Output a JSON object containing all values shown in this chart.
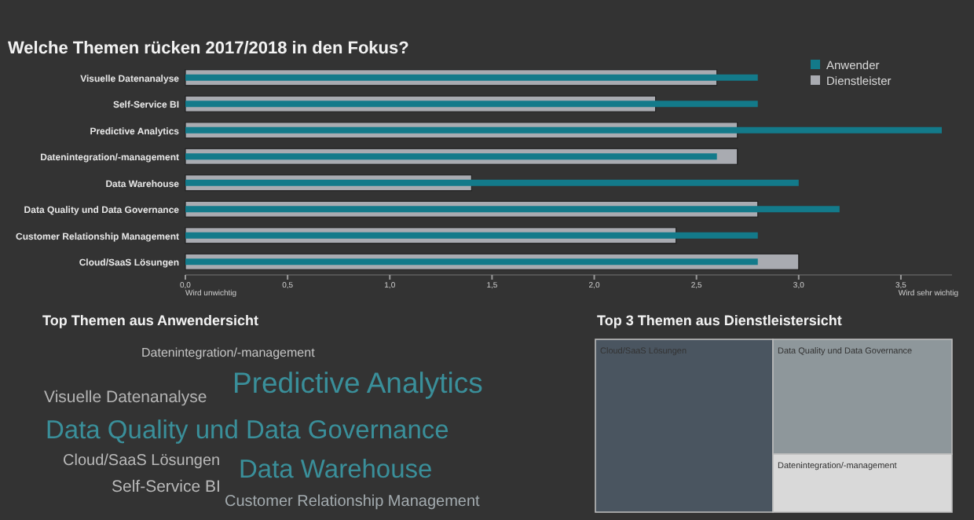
{
  "chart_data": [
    {
      "type": "bar",
      "orientation": "horizontal",
      "title": "Welche Themen rücken 2017/2018 in den Fokus?",
      "categories": [
        "Visuelle Datenanalyse",
        "Self-Service BI",
        "Predictive Analytics",
        "Datenintegration/-management",
        "Data Warehouse",
        "Data Quality und Data Governance",
        "Customer Relationship Management",
        "Cloud/SaaS Lösungen"
      ],
      "series": [
        {
          "name": "Anwender",
          "color": "#137a8a",
          "values": [
            2.8,
            2.8,
            3.7,
            2.6,
            3.0,
            3.2,
            2.8,
            2.8
          ]
        },
        {
          "name": "Dienstleister",
          "color": "#a9abb1",
          "values": [
            2.6,
            2.3,
            2.7,
            2.7,
            1.4,
            2.8,
            2.4,
            3.0
          ]
        }
      ],
      "xlim": [
        0,
        3.75
      ],
      "xticks": [
        {
          "value": 0,
          "label": "0,0"
        },
        {
          "value": 0.5,
          "label": "0,5"
        },
        {
          "value": 1,
          "label": "1,0"
        },
        {
          "value": 1.5,
          "label": "1,5"
        },
        {
          "value": 2,
          "label": "2,0"
        },
        {
          "value": 2.5,
          "label": "2,5"
        },
        {
          "value": 3,
          "label": "3,0"
        },
        {
          "value": 3.5,
          "label": "3,5"
        }
      ],
      "annotations": [
        "Wird unwichtig",
        "Wird sehr wichtig"
      ],
      "legend": "top right",
      "grid": false
    },
    {
      "type": "other",
      "title": "Top Themen aus Anwendersicht",
      "categories": [
        "Datenintegration/-management",
        "Predictive Analytics",
        "Visuelle Datenanalyse",
        "Data Quality und Data Governance",
        "Cloud/SaaS Lösungen",
        "Data Warehouse",
        "Self-Service BI",
        "Customer Relationship Management"
      ],
      "colors": [
        "#c4c4c4",
        "#3a8f9a",
        "#b4b4b4",
        "#3a8f9a",
        "#b9b9b9",
        "#3a8f9a",
        "#b9b9b9",
        "#a3abaf"
      ]
    },
    {
      "type": "other",
      "title": "Top 3 Themen aus Dienstleistersicht",
      "categories": [
        "Cloud/SaaS Lösungen",
        "Data Quality und Data Governance",
        "Datenintegration/-management"
      ],
      "colors": [
        "#4a5560",
        "#8e979b",
        "#d9d9d9"
      ]
    }
  ]
}
